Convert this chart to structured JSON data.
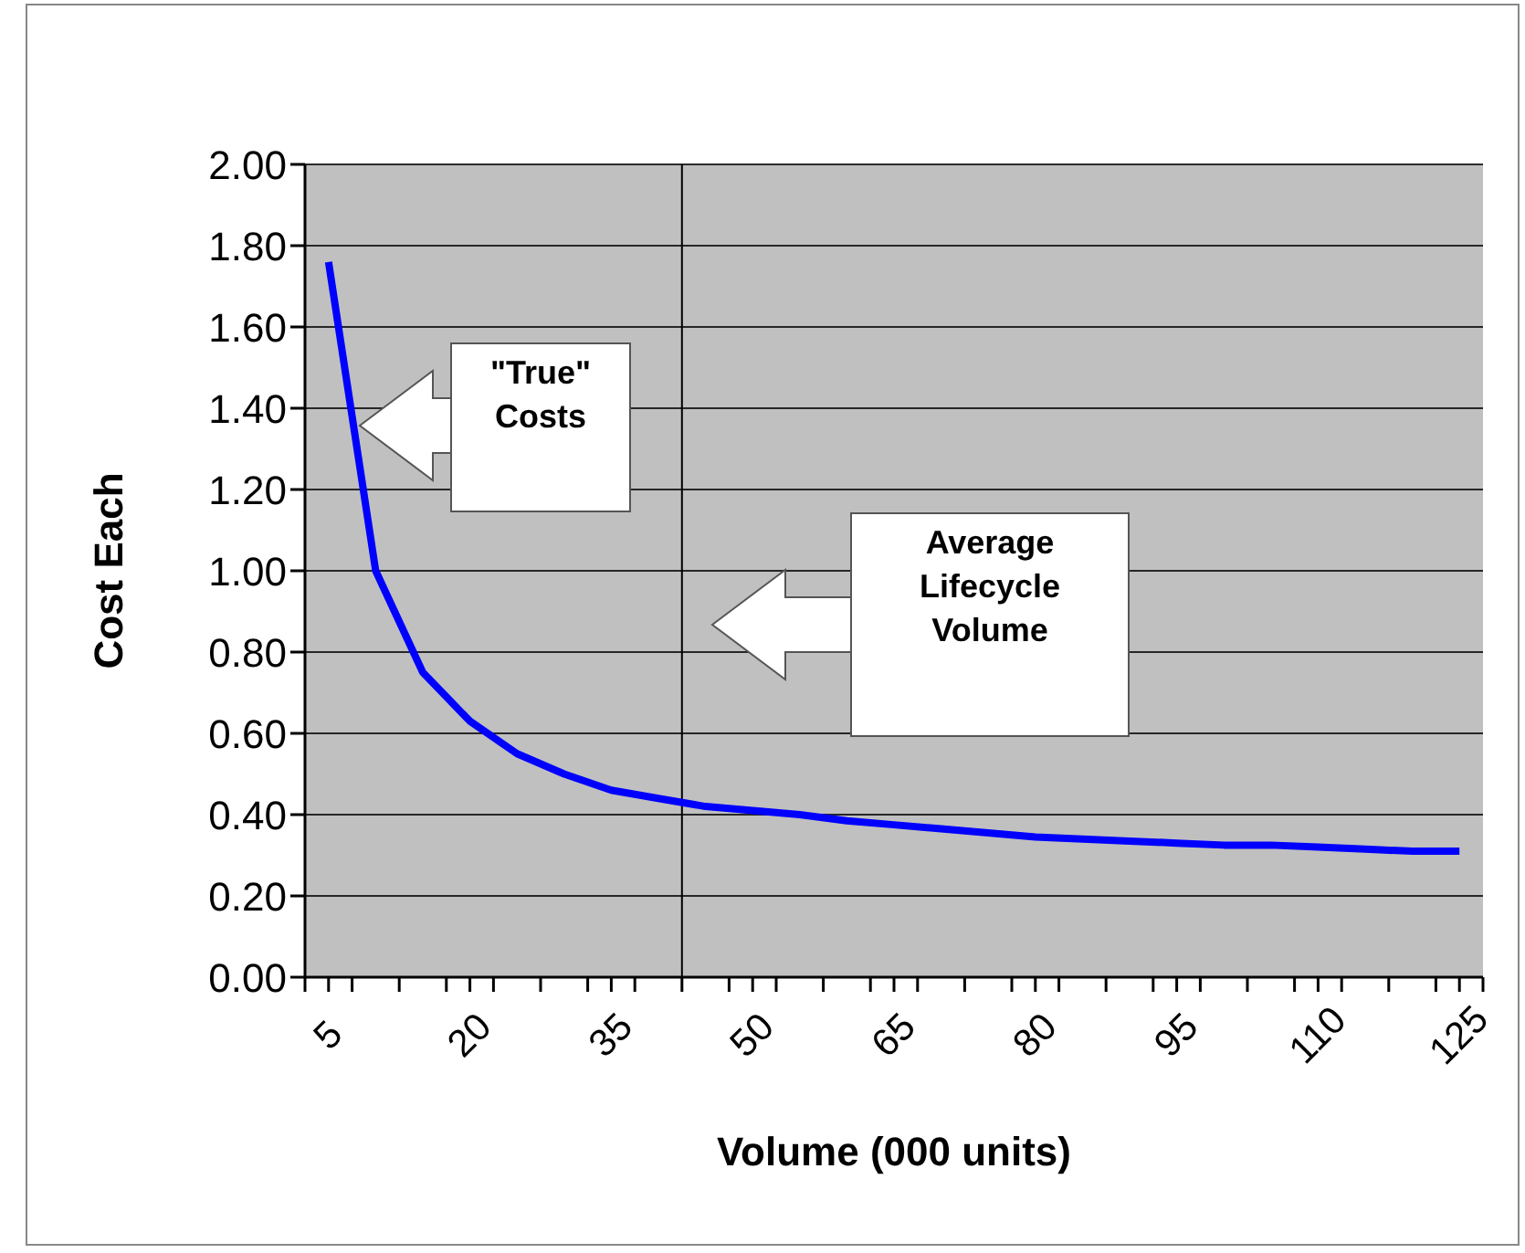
{
  "chart_data": {
    "type": "line",
    "xlabel": "Volume (000 units)",
    "ylabel": "Cost Each",
    "x": [
      5,
      10,
      15,
      20,
      25,
      30,
      35,
      40,
      45,
      50,
      55,
      60,
      65,
      70,
      75,
      80,
      85,
      90,
      95,
      100,
      105,
      110,
      115,
      120,
      125
    ],
    "series": [
      {
        "color": "#0000ff",
        "values": [
          1.76,
          1.0,
          0.75,
          0.63,
          0.55,
          0.5,
          0.46,
          0.44,
          0.42,
          0.41,
          0.4,
          0.385,
          0.375,
          0.365,
          0.355,
          0.345,
          0.34,
          0.335,
          0.33,
          0.325,
          0.325,
          0.32,
          0.315,
          0.31,
          0.31
        ]
      }
    ],
    "xlim": [
      2.5,
      127.5
    ],
    "xticks": [
      {
        "value": 2.5,
        "label": null
      },
      5,
      {
        "value": 7.5,
        "label": null
      },
      {
        "value": 12.5,
        "label": null
      },
      {
        "value": 17.5,
        "label": null
      },
      20,
      {
        "value": 22.5,
        "label": null
      },
      {
        "value": 27.5,
        "label": null
      },
      {
        "value": 32.5,
        "label": null
      },
      35,
      {
        "value": 37.5,
        "label": null
      },
      {
        "value": 42.5,
        "label": null
      },
      {
        "value": 47.5,
        "label": null
      },
      50,
      {
        "value": 52.5,
        "label": null
      },
      {
        "value": 57.5,
        "label": null
      },
      {
        "value": 62.5,
        "label": null
      },
      65,
      {
        "value": 67.5,
        "label": null
      },
      {
        "value": 72.5,
        "label": null
      },
      {
        "value": 77.5,
        "label": null
      },
      80,
      {
        "value": 82.5,
        "label": null
      },
      {
        "value": 87.5,
        "label": null
      },
      {
        "value": 92.5,
        "label": null
      },
      95,
      {
        "value": 97.5,
        "label": null
      },
      {
        "value": 102.5,
        "label": null
      },
      {
        "value": 107.5,
        "label": null
      },
      110,
      {
        "value": 112.5,
        "label": null
      },
      {
        "value": 117.5,
        "label": null
      },
      {
        "value": 122.5,
        "label": null
      },
      125,
      {
        "value": 127.5,
        "label": null
      }
    ],
    "ylim": [
      0,
      2
    ],
    "yticks": [
      {
        "value": 0,
        "label": "0.00"
      },
      {
        "value": 0.2,
        "label": "0.20"
      },
      {
        "value": 0.4,
        "label": "0.40"
      },
      {
        "value": 0.6,
        "label": "0.60"
      },
      {
        "value": 0.8,
        "label": "0.80"
      },
      {
        "value": 1.0,
        "label": "1.00"
      },
      {
        "value": 1.2,
        "label": "1.20"
      },
      {
        "value": 1.4,
        "label": "1.40"
      },
      {
        "value": 1.6,
        "label": "1.60"
      },
      {
        "value": 1.8,
        "label": "1.80"
      },
      {
        "value": 2.0,
        "label": "2.00"
      }
    ],
    "grid": "y",
    "legend": false,
    "marker": "none",
    "line_style": "solid",
    "ref_lines": [
      {
        "axis": "x",
        "value": 42.5,
        "label": "Average Lifecycle Volume",
        "color": "#000000"
      }
    ],
    "annotations": [
      "\"True\" Costs"
    ]
  }
}
